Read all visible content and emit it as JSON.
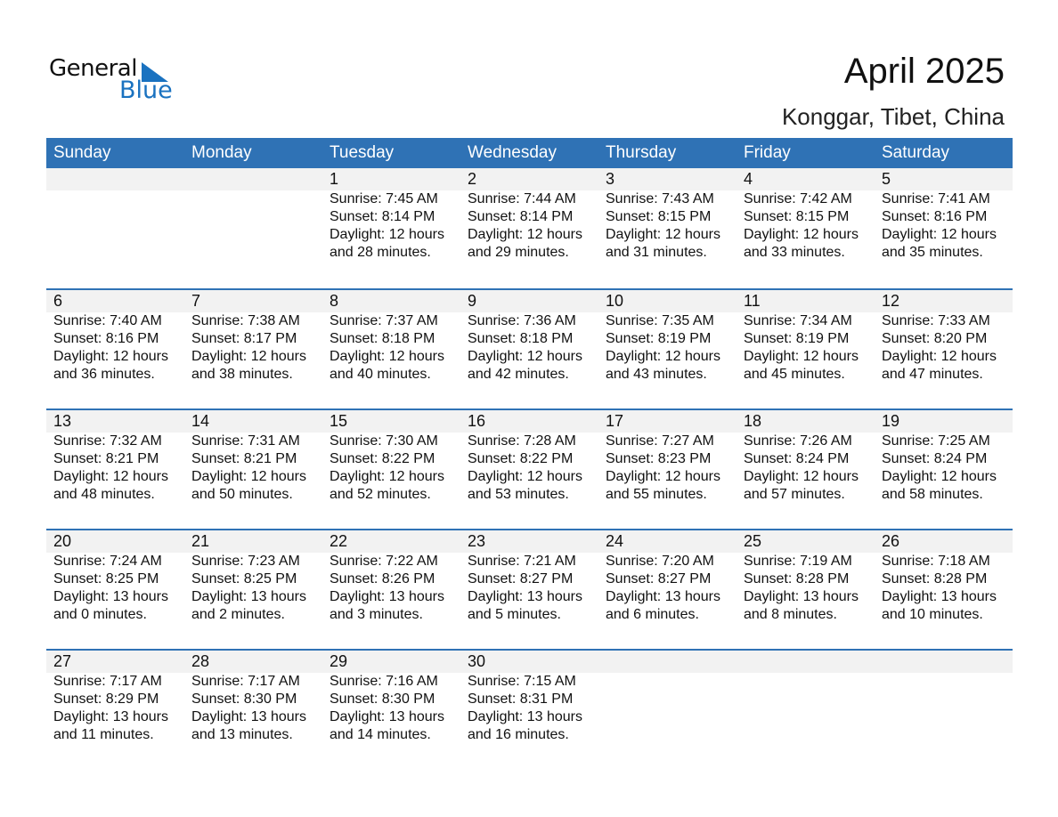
{
  "logo": {
    "general": "General",
    "blue": "Blue"
  },
  "title": "April 2025",
  "subtitle": "Konggar, Tibet, China",
  "colors": {
    "header_bg": "#2f72b5",
    "band_bg": "#f2f2f2",
    "logo_blue": "#1a72c0"
  },
  "weekdays": [
    "Sunday",
    "Monday",
    "Tuesday",
    "Wednesday",
    "Thursday",
    "Friday",
    "Saturday"
  ],
  "weeks": [
    [
      null,
      null,
      {
        "day": "1",
        "sunrise": "Sunrise: 7:45 AM",
        "sunset": "Sunset: 8:14 PM",
        "daylight": "Daylight: 12 hours",
        "minutes": "and 28 minutes."
      },
      {
        "day": "2",
        "sunrise": "Sunrise: 7:44 AM",
        "sunset": "Sunset: 8:14 PM",
        "daylight": "Daylight: 12 hours",
        "minutes": "and 29 minutes."
      },
      {
        "day": "3",
        "sunrise": "Sunrise: 7:43 AM",
        "sunset": "Sunset: 8:15 PM",
        "daylight": "Daylight: 12 hours",
        "minutes": "and 31 minutes."
      },
      {
        "day": "4",
        "sunrise": "Sunrise: 7:42 AM",
        "sunset": "Sunset: 8:15 PM",
        "daylight": "Daylight: 12 hours",
        "minutes": "and 33 minutes."
      },
      {
        "day": "5",
        "sunrise": "Sunrise: 7:41 AM",
        "sunset": "Sunset: 8:16 PM",
        "daylight": "Daylight: 12 hours",
        "minutes": "and 35 minutes."
      }
    ],
    [
      {
        "day": "6",
        "sunrise": "Sunrise: 7:40 AM",
        "sunset": "Sunset: 8:16 PM",
        "daylight": "Daylight: 12 hours",
        "minutes": "and 36 minutes."
      },
      {
        "day": "7",
        "sunrise": "Sunrise: 7:38 AM",
        "sunset": "Sunset: 8:17 PM",
        "daylight": "Daylight: 12 hours",
        "minutes": "and 38 minutes."
      },
      {
        "day": "8",
        "sunrise": "Sunrise: 7:37 AM",
        "sunset": "Sunset: 8:18 PM",
        "daylight": "Daylight: 12 hours",
        "minutes": "and 40 minutes."
      },
      {
        "day": "9",
        "sunrise": "Sunrise: 7:36 AM",
        "sunset": "Sunset: 8:18 PM",
        "daylight": "Daylight: 12 hours",
        "minutes": "and 42 minutes."
      },
      {
        "day": "10",
        "sunrise": "Sunrise: 7:35 AM",
        "sunset": "Sunset: 8:19 PM",
        "daylight": "Daylight: 12 hours",
        "minutes": "and 43 minutes."
      },
      {
        "day": "11",
        "sunrise": "Sunrise: 7:34 AM",
        "sunset": "Sunset: 8:19 PM",
        "daylight": "Daylight: 12 hours",
        "minutes": "and 45 minutes."
      },
      {
        "day": "12",
        "sunrise": "Sunrise: 7:33 AM",
        "sunset": "Sunset: 8:20 PM",
        "daylight": "Daylight: 12 hours",
        "minutes": "and 47 minutes."
      }
    ],
    [
      {
        "day": "13",
        "sunrise": "Sunrise: 7:32 AM",
        "sunset": "Sunset: 8:21 PM",
        "daylight": "Daylight: 12 hours",
        "minutes": "and 48 minutes."
      },
      {
        "day": "14",
        "sunrise": "Sunrise: 7:31 AM",
        "sunset": "Sunset: 8:21 PM",
        "daylight": "Daylight: 12 hours",
        "minutes": "and 50 minutes."
      },
      {
        "day": "15",
        "sunrise": "Sunrise: 7:30 AM",
        "sunset": "Sunset: 8:22 PM",
        "daylight": "Daylight: 12 hours",
        "minutes": "and 52 minutes."
      },
      {
        "day": "16",
        "sunrise": "Sunrise: 7:28 AM",
        "sunset": "Sunset: 8:22 PM",
        "daylight": "Daylight: 12 hours",
        "minutes": "and 53 minutes."
      },
      {
        "day": "17",
        "sunrise": "Sunrise: 7:27 AM",
        "sunset": "Sunset: 8:23 PM",
        "daylight": "Daylight: 12 hours",
        "minutes": "and 55 minutes."
      },
      {
        "day": "18",
        "sunrise": "Sunrise: 7:26 AM",
        "sunset": "Sunset: 8:24 PM",
        "daylight": "Daylight: 12 hours",
        "minutes": "and 57 minutes."
      },
      {
        "day": "19",
        "sunrise": "Sunrise: 7:25 AM",
        "sunset": "Sunset: 8:24 PM",
        "daylight": "Daylight: 12 hours",
        "minutes": "and 58 minutes."
      }
    ],
    [
      {
        "day": "20",
        "sunrise": "Sunrise: 7:24 AM",
        "sunset": "Sunset: 8:25 PM",
        "daylight": "Daylight: 13 hours",
        "minutes": "and 0 minutes."
      },
      {
        "day": "21",
        "sunrise": "Sunrise: 7:23 AM",
        "sunset": "Sunset: 8:25 PM",
        "daylight": "Daylight: 13 hours",
        "minutes": "and 2 minutes."
      },
      {
        "day": "22",
        "sunrise": "Sunrise: 7:22 AM",
        "sunset": "Sunset: 8:26 PM",
        "daylight": "Daylight: 13 hours",
        "minutes": "and 3 minutes."
      },
      {
        "day": "23",
        "sunrise": "Sunrise: 7:21 AM",
        "sunset": "Sunset: 8:27 PM",
        "daylight": "Daylight: 13 hours",
        "minutes": "and 5 minutes."
      },
      {
        "day": "24",
        "sunrise": "Sunrise: 7:20 AM",
        "sunset": "Sunset: 8:27 PM",
        "daylight": "Daylight: 13 hours",
        "minutes": "and 6 minutes."
      },
      {
        "day": "25",
        "sunrise": "Sunrise: 7:19 AM",
        "sunset": "Sunset: 8:28 PM",
        "daylight": "Daylight: 13 hours",
        "minutes": "and 8 minutes."
      },
      {
        "day": "26",
        "sunrise": "Sunrise: 7:18 AM",
        "sunset": "Sunset: 8:28 PM",
        "daylight": "Daylight: 13 hours",
        "minutes": "and 10 minutes."
      }
    ],
    [
      {
        "day": "27",
        "sunrise": "Sunrise: 7:17 AM",
        "sunset": "Sunset: 8:29 PM",
        "daylight": "Daylight: 13 hours",
        "minutes": "and 11 minutes."
      },
      {
        "day": "28",
        "sunrise": "Sunrise: 7:17 AM",
        "sunset": "Sunset: 8:30 PM",
        "daylight": "Daylight: 13 hours",
        "minutes": "and 13 minutes."
      },
      {
        "day": "29",
        "sunrise": "Sunrise: 7:16 AM",
        "sunset": "Sunset: 8:30 PM",
        "daylight": "Daylight: 13 hours",
        "minutes": "and 14 minutes."
      },
      {
        "day": "30",
        "sunrise": "Sunrise: 7:15 AM",
        "sunset": "Sunset: 8:31 PM",
        "daylight": "Daylight: 13 hours",
        "minutes": "and 16 minutes."
      },
      null,
      null,
      null
    ]
  ]
}
